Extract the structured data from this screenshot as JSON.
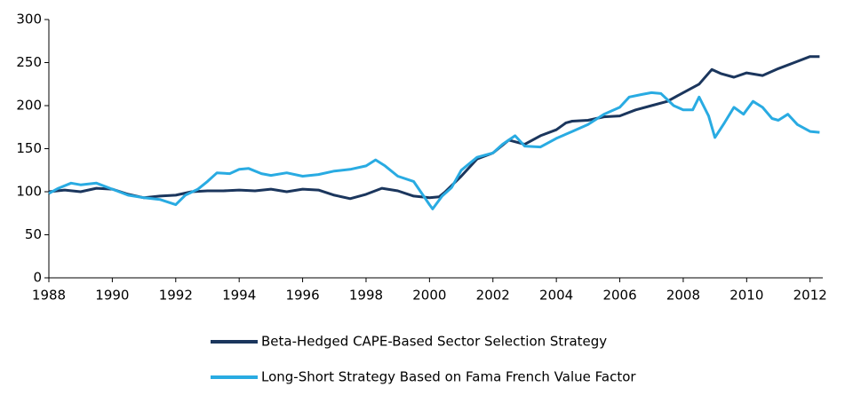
{
  "chart_data": {
    "type": "line",
    "xlim": [
      1988,
      2012.4
    ],
    "xticks": [
      1988,
      1990,
      1992,
      1994,
      1996,
      1998,
      2000,
      2002,
      2004,
      2006,
      2008,
      2010,
      2012
    ],
    "ylim": [
      0,
      300
    ],
    "yticks": [
      0,
      50,
      100,
      150,
      200,
      250,
      300
    ],
    "grid": false,
    "legend": "bottom",
    "series": [
      {
        "name": "Beta-Hedged CAPE-Based Sector Selection Strategy",
        "color": "#1b365d",
        "x": [
          1988,
          1988.5,
          1989,
          1989.5,
          1990,
          1990.5,
          1991,
          1991.5,
          1992,
          1992.5,
          1993,
          1993.5,
          1994,
          1994.5,
          1995,
          1995.5,
          1996,
          1996.5,
          1997,
          1997.5,
          1998,
          1998.5,
          1999,
          1999.5,
          2000,
          2000.3,
          2000.5,
          2001,
          2001.5,
          2002,
          2002.5,
          2003,
          2003.5,
          2004,
          2004.3,
          2004.5,
          2005,
          2005.5,
          2006,
          2006.5,
          2007,
          2007.5,
          2008,
          2008.5,
          2008.9,
          2009.2,
          2009.6,
          2010,
          2010.5,
          2011,
          2011.5,
          2012,
          2012.3
        ],
        "values": [
          100,
          102,
          100,
          104,
          103,
          97,
          93,
          95,
          96,
          100,
          101,
          101,
          102,
          101,
          103,
          100,
          103,
          102,
          96,
          92,
          97,
          104,
          101,
          95,
          93,
          94,
          100,
          118,
          138,
          145,
          160,
          155,
          165,
          172,
          180,
          182,
          183,
          187,
          188,
          195,
          200,
          205,
          215,
          225,
          242,
          237,
          233,
          238,
          235,
          243,
          250,
          257,
          257
        ]
      },
      {
        "name": "Long-Short Strategy Based on Fama French Value Factor",
        "color": "#29abe2",
        "x": [
          1988,
          1988.3,
          1988.7,
          1989,
          1989.5,
          1990,
          1990.5,
          1991,
          1991.5,
          1992,
          1992.3,
          1992.7,
          1993,
          1993.3,
          1993.7,
          1994,
          1994.3,
          1994.7,
          1995,
          1995.5,
          1996,
          1996.5,
          1997,
          1997.5,
          1998,
          1998.3,
          1998.6,
          1999,
          1999.5,
          2000,
          2000.1,
          2000.4,
          2000.7,
          2001,
          2001.5,
          2002,
          2002.3,
          2002.7,
          2003,
          2003.5,
          2004,
          2004.5,
          2005,
          2005.5,
          2006,
          2006.3,
          2006.7,
          2007,
          2007.3,
          2007.7,
          2008,
          2008.3,
          2008.5,
          2008.8,
          2009,
          2009.3,
          2009.6,
          2009.9,
          2010.2,
          2010.5,
          2010.8,
          2011,
          2011.3,
          2011.6,
          2012,
          2012.3
        ],
        "values": [
          98,
          104,
          110,
          108,
          110,
          103,
          96,
          93,
          91,
          85,
          96,
          103,
          112,
          122,
          121,
          126,
          127,
          121,
          119,
          122,
          118,
          120,
          124,
          126,
          130,
          137,
          130,
          118,
          112,
          85,
          80,
          95,
          105,
          125,
          140,
          145,
          155,
          165,
          153,
          152,
          162,
          170,
          178,
          190,
          198,
          210,
          213,
          215,
          214,
          200,
          195,
          195,
          210,
          188,
          163,
          180,
          198,
          190,
          205,
          198,
          185,
          183,
          190,
          178,
          170,
          169
        ]
      }
    ]
  }
}
